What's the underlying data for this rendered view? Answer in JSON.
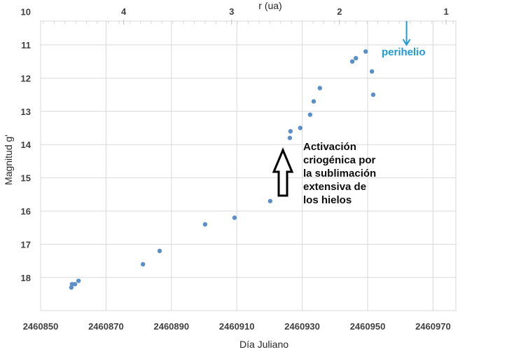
{
  "chart_data": {
    "type": "scatter",
    "title": "",
    "xlabel": "Día Juliano",
    "ylabel": "Magnitud g'",
    "x2label": "r (ua)",
    "xlim": [
      2460850,
      2460977
    ],
    "ylim": [
      10,
      19
    ],
    "y_inverted": true,
    "grid": true,
    "x_ticks": [
      2460850,
      2460870,
      2460890,
      2460910,
      2460930,
      2460950,
      2460970
    ],
    "y_ticks": [
      10,
      11,
      12,
      13,
      14,
      15,
      16,
      17,
      18
    ],
    "x2_ticks": [
      {
        "label": "4",
        "x": 2460875.4
      },
      {
        "label": "3",
        "x": 2460908.4
      },
      {
        "label": "2",
        "x": 2460941.4
      },
      {
        "label": "1",
        "x": 2460974.0
      }
    ],
    "series": [
      {
        "name": "Magnitud g'",
        "color": "#5b8fc7",
        "points": [
          {
            "x": 2460859.4,
            "y": 18.3
          },
          {
            "x": 2460859.6,
            "y": 18.2
          },
          {
            "x": 2460860.5,
            "y": 18.2
          },
          {
            "x": 2460861.6,
            "y": 18.1
          },
          {
            "x": 2460881.3,
            "y": 17.6
          },
          {
            "x": 2460886.4,
            "y": 17.2
          },
          {
            "x": 2460900.3,
            "y": 16.4
          },
          {
            "x": 2460909.3,
            "y": 16.2
          },
          {
            "x": 2460920.2,
            "y": 15.7
          },
          {
            "x": 2460926.2,
            "y": 13.8
          },
          {
            "x": 2460926.4,
            "y": 13.6
          },
          {
            "x": 2460929.4,
            "y": 13.5
          },
          {
            "x": 2460932.4,
            "y": 13.1
          },
          {
            "x": 2460933.5,
            "y": 12.7
          },
          {
            "x": 2460935.4,
            "y": 12.3
          },
          {
            "x": 2460945.3,
            "y": 11.5
          },
          {
            "x": 2460946.4,
            "y": 11.4
          },
          {
            "x": 2460949.4,
            "y": 11.2
          },
          {
            "x": 2460951.3,
            "y": 11.8
          },
          {
            "x": 2460951.7,
            "y": 12.5
          }
        ]
      }
    ],
    "annotations": [
      {
        "text": "perihelio",
        "color": "#1e9ad6",
        "arrow": "down",
        "x": 2460961.9,
        "y": 11.0
      },
      {
        "text": "Activación criogénica por la sublimación extensiva de los hielos",
        "color": "#000000",
        "arrow": "up-outline",
        "x": 2460924.6
      }
    ]
  },
  "labels": {
    "xlabel": "Día Juliano",
    "ylabel": "Magnitud g'",
    "x2label": "r (ua)",
    "perihelio": "perihelio",
    "annotation_lines": [
      "Activación",
      "criogénica por",
      "la sublimación",
      "extensiva de",
      "los hielos"
    ]
  }
}
